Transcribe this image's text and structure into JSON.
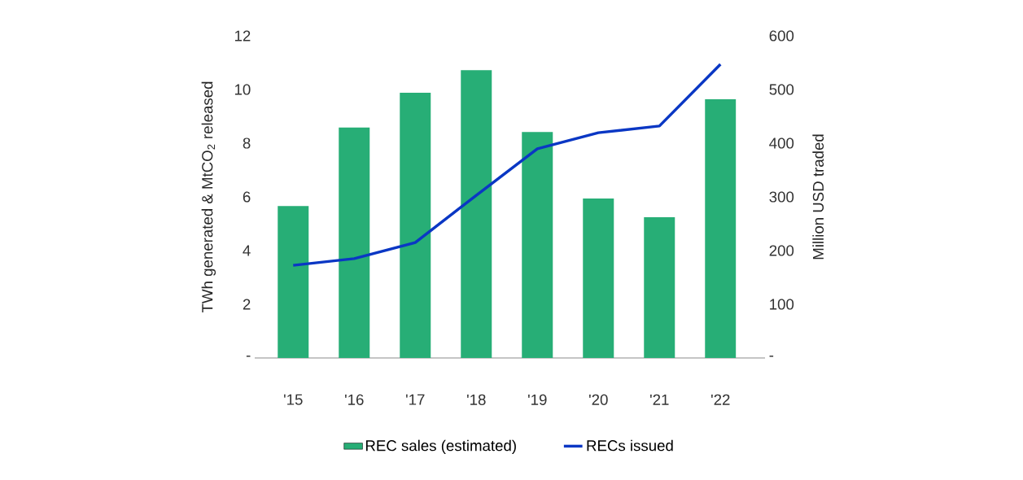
{
  "chart_data": {
    "type": "bar",
    "categories": [
      "'15",
      "'16",
      "'17",
      "'18",
      "'19",
      "'20",
      "'21",
      "'22"
    ],
    "ylabel": "TWh generated & MtCO$_{2}$ released",
    "y2label": "Million USD traded",
    "ylim": [
      0,
      12
    ],
    "yticks": [
      {
        "value": 0,
        "label": "-"
      },
      2,
      4,
      6,
      8,
      10,
      12
    ],
    "y2lim": [
      0,
      600
    ],
    "y2ticks": [
      {
        "value": 0,
        "label": "-"
      },
      100,
      200,
      300,
      400,
      500,
      600
    ],
    "series": [
      {
        "name": "REC sales (estimated)",
        "axis": "y2",
        "color": "#27ae76",
        "values": [
          283,
          429,
          494,
          536,
          421,
          297,
          262,
          482
        ]
      },
      {
        "name": "RECs issued",
        "type": "line",
        "color": "#0a37c4",
        "values": [
          3.45,
          3.7,
          4.3,
          6.06,
          7.79,
          8.39,
          8.64,
          10.94
        ]
      }
    ],
    "marker": "none",
    "grid": false,
    "legend": "bottom"
  }
}
